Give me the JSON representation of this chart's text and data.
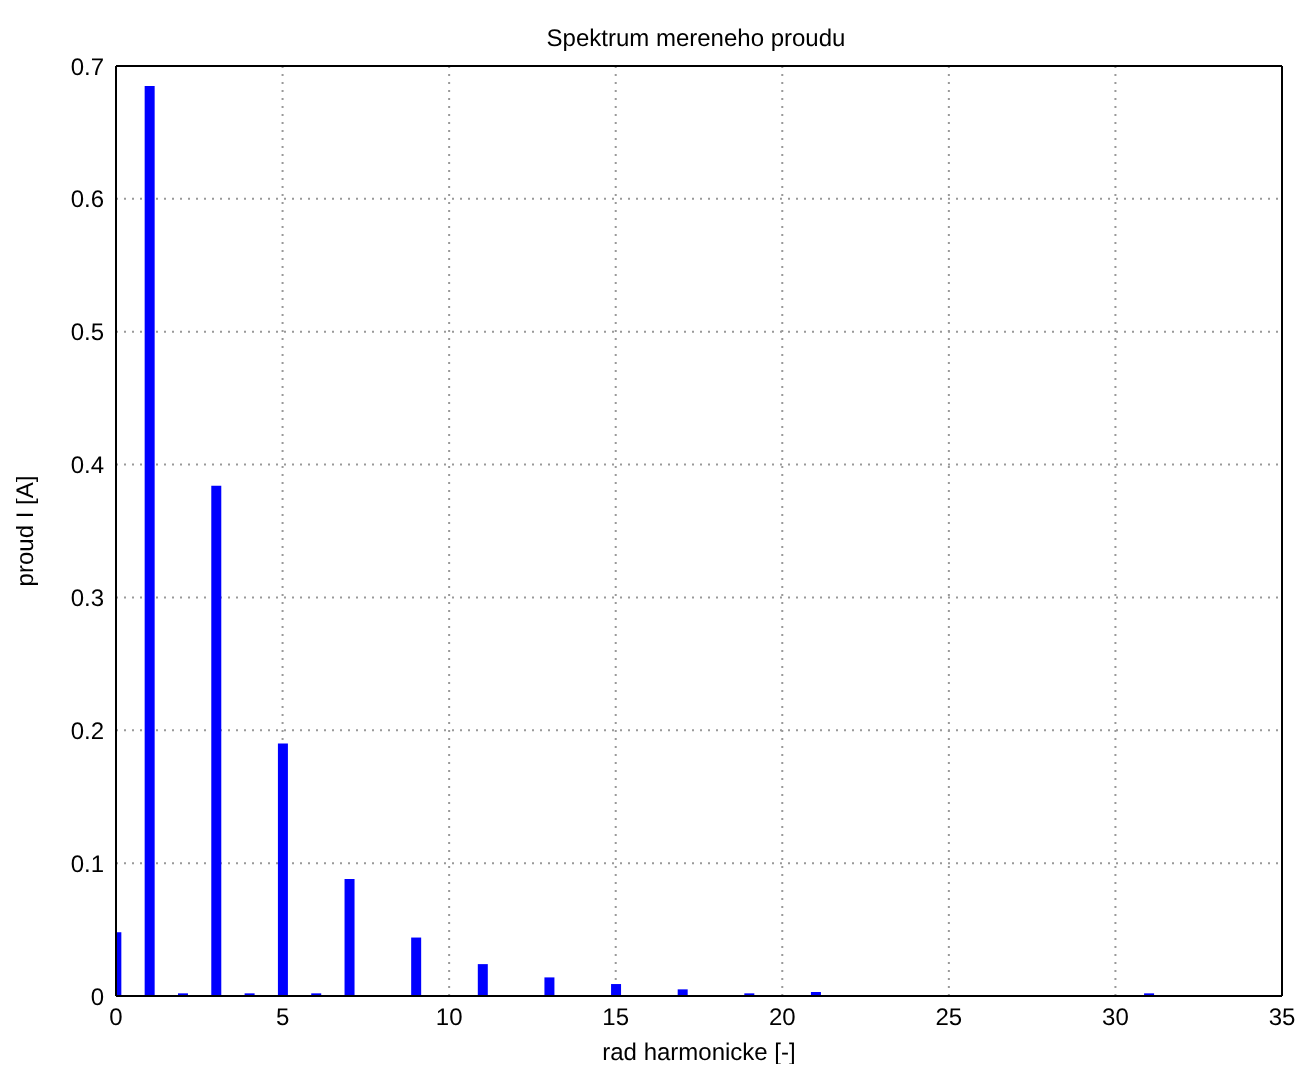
{
  "chart_data": {
    "type": "bar",
    "title": "Spektrum mereneho proudu",
    "xlabel": "rad harmonicke [-]",
    "ylabel": "proud I [A]",
    "x": [
      0,
      1,
      2,
      3,
      4,
      5,
      6,
      7,
      8,
      9,
      10,
      11,
      12,
      13,
      14,
      15,
      16,
      17,
      18,
      19,
      20,
      21,
      22,
      23,
      24,
      25,
      26,
      27,
      28,
      29,
      30,
      31,
      32,
      33,
      34
    ],
    "values": [
      0.048,
      0.685,
      0.002,
      0.384,
      0.002,
      0.19,
      0.002,
      0.088,
      0,
      0.044,
      0,
      0.024,
      0,
      0.014,
      0,
      0.009,
      0,
      0.005,
      0,
      0.002,
      0,
      0.003,
      0,
      0,
      0,
      0,
      0,
      0,
      0,
      0,
      0,
      0.002,
      0,
      0,
      0
    ],
    "color": "#0000ff",
    "xlim": [
      0,
      35
    ],
    "xticks": [
      0,
      5,
      10,
      15,
      20,
      25,
      30,
      35
    ],
    "ylim": [
      0,
      0.7
    ],
    "yticks": [
      0,
      0.1,
      0.2,
      0.3,
      0.4,
      0.5,
      0.6,
      0.7
    ],
    "grid": true
  }
}
